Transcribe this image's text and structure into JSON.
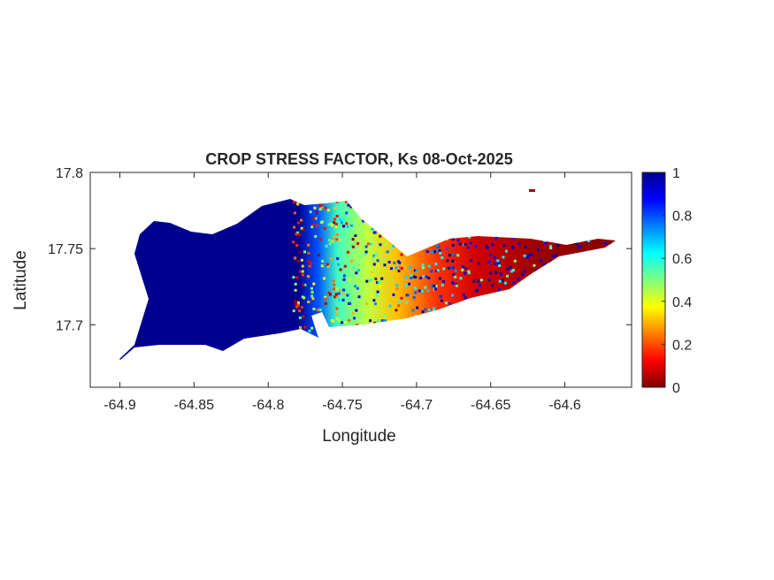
{
  "chart_data": {
    "type": "heatmap",
    "title": "CROP STRESS FACTOR, Ks  08-Oct-2025",
    "xlabel": "Longitude",
    "ylabel": "Latitude",
    "xlim": [
      -64.92,
      -64.555
    ],
    "ylim": [
      17.659,
      17.8
    ],
    "xticks": [
      -64.9,
      -64.85,
      -64.8,
      -64.75,
      -64.7,
      -64.65,
      -64.6
    ],
    "xtick_labels": [
      "-64.9",
      "-64.85",
      "-64.8",
      "-64.75",
      "-64.7",
      "-64.65",
      "-64.6"
    ],
    "yticks": [
      17.7,
      17.75,
      17.8
    ],
    "ytick_labels": [
      "17.7",
      "17.75",
      "17.8"
    ],
    "colorbar": {
      "colormap": "jet",
      "clim": [
        0,
        1
      ],
      "ticks": [
        0,
        0.2,
        0.4,
        0.6,
        0.8,
        1
      ],
      "tick_labels": [
        "0",
        "0.2",
        "0.4",
        "0.6",
        "0.8",
        "1"
      ],
      "location": "right"
    },
    "grid": false,
    "summary_pattern": "west of about -64.78 Ks ≈ 1 (dark blue); mixed 0.2–0.9 between -64.78 and -64.7; east of -64.7 Ks ≈ 0–0.2 (red)"
  }
}
